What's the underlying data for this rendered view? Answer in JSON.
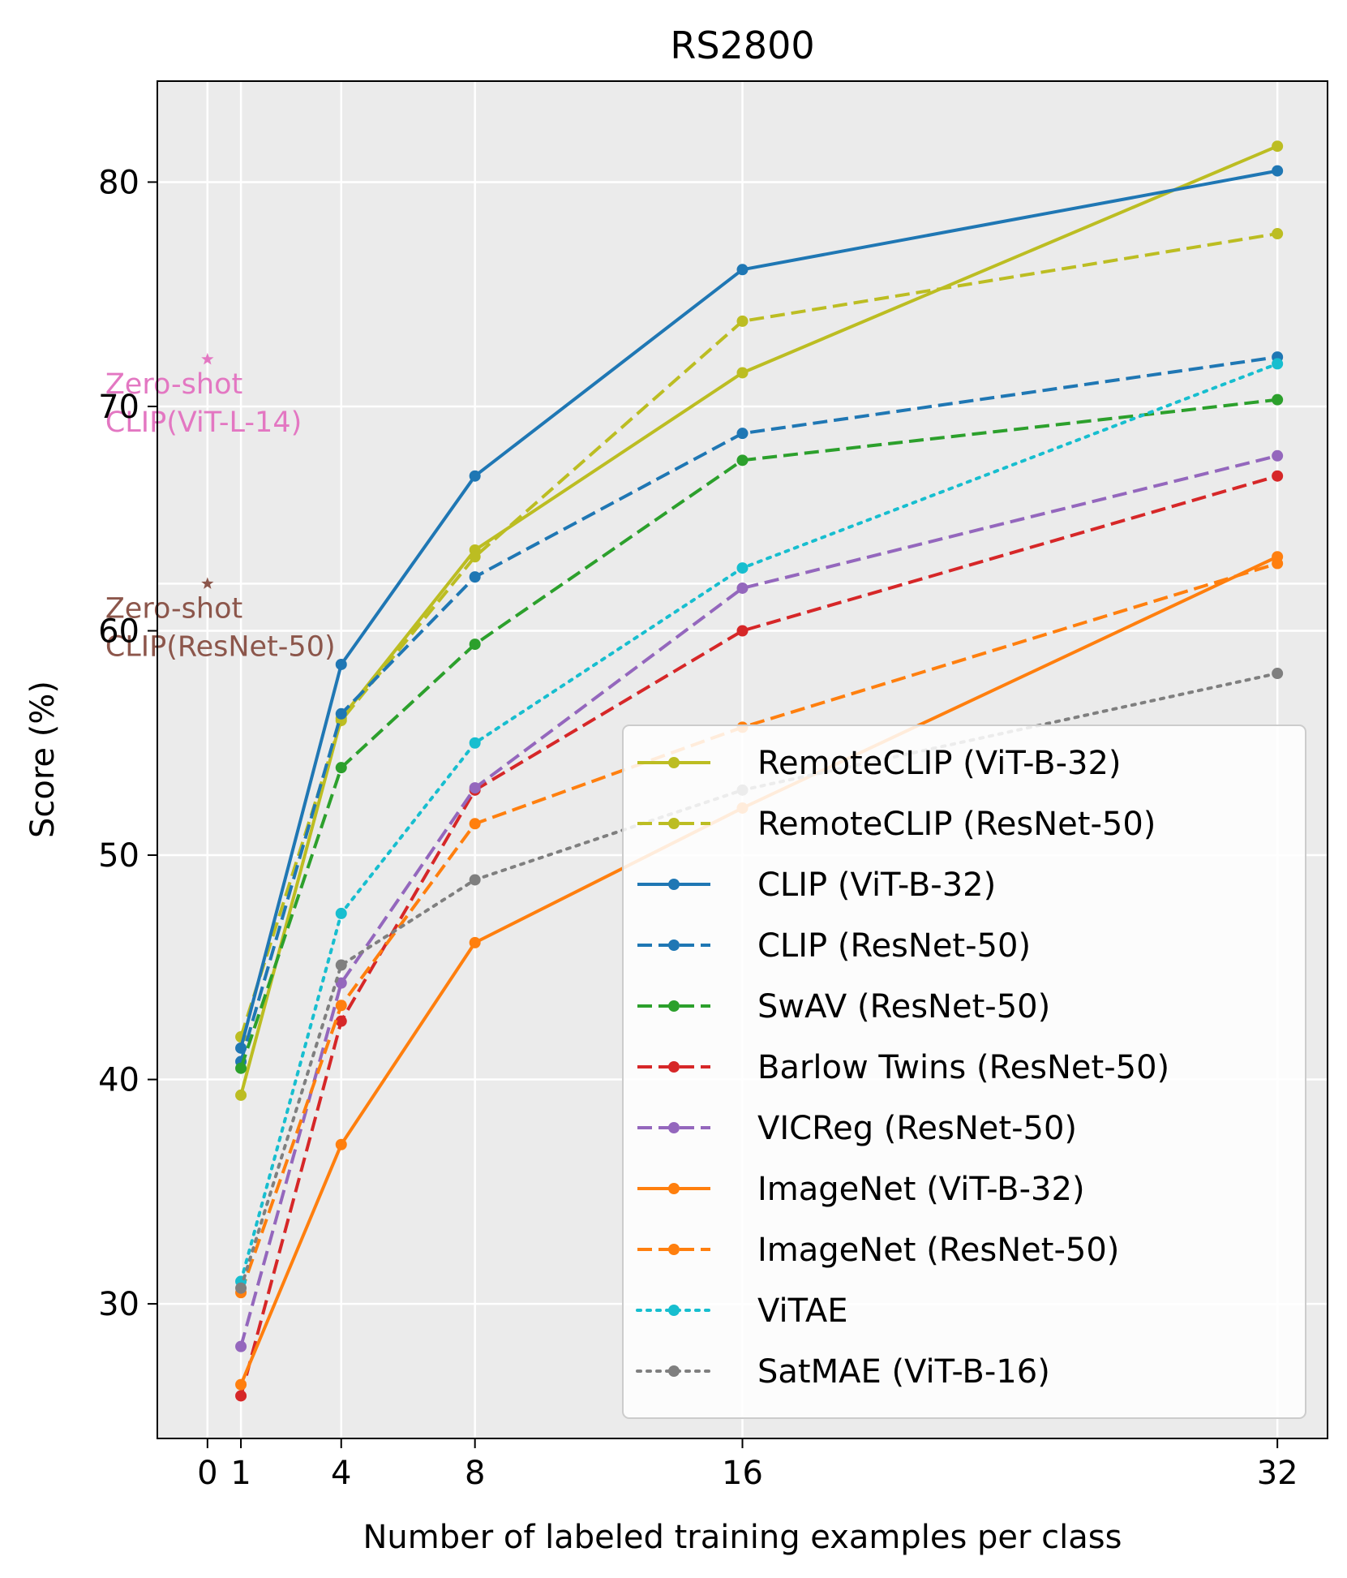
{
  "chart_data": {
    "type": "line",
    "title": "RS2800",
    "xlabel": "Number of labeled training examples per class",
    "ylabel": "Score (%)",
    "xlim": [
      -1.5,
      33.5
    ],
    "ylim": [
      24,
      84.5
    ],
    "x_ticks": [
      0,
      1,
      4,
      8,
      16,
      32
    ],
    "y_ticks": [
      30,
      40,
      50,
      60,
      70,
      80
    ],
    "grid": true,
    "legend_position": "lower-right",
    "series": [
      {
        "name": "RemoteCLIP (ViT-B-32)",
        "color": "#bcbd22",
        "dash": "solid",
        "x": [
          1,
          4,
          8,
          16,
          32
        ],
        "y": [
          39.3,
          56.1,
          63.6,
          71.5,
          81.6
        ]
      },
      {
        "name": "RemoteCLIP (ResNet-50)",
        "color": "#bcbd22",
        "dash": "dashed",
        "x": [
          1,
          4,
          8,
          16,
          32
        ],
        "y": [
          41.9,
          56.0,
          63.3,
          73.8,
          77.7
        ]
      },
      {
        "name": "CLIP (ViT-B-32)",
        "color": "#1f77b4",
        "dash": "solid",
        "x": [
          1,
          4,
          8,
          16,
          32
        ],
        "y": [
          41.4,
          58.5,
          66.9,
          76.1,
          80.5
        ]
      },
      {
        "name": "CLIP (ResNet-50)",
        "color": "#1f77b4",
        "dash": "dashed",
        "x": [
          1,
          4,
          8,
          16,
          32
        ],
        "y": [
          40.8,
          56.3,
          62.4,
          68.8,
          72.2
        ]
      },
      {
        "name": "SwAV (ResNet-50)",
        "color": "#2ca02c",
        "dash": "dashed",
        "x": [
          1,
          4,
          8,
          16,
          32
        ],
        "y": [
          40.5,
          53.9,
          59.4,
          67.6,
          70.3
        ]
      },
      {
        "name": "Barlow Twins (ResNet-50)",
        "color": "#d62728",
        "dash": "dashed",
        "x": [
          1,
          4,
          8,
          16,
          32
        ],
        "y": [
          25.9,
          42.6,
          52.9,
          60.0,
          66.9
        ]
      },
      {
        "name": "VICReg (ResNet-50)",
        "color": "#9467bd",
        "dash": "dashed",
        "x": [
          1,
          4,
          8,
          16,
          32
        ],
        "y": [
          28.1,
          44.3,
          53.0,
          61.9,
          67.8
        ]
      },
      {
        "name": "ImageNet (ViT-B-32)",
        "color": "#ff7f0e",
        "dash": "solid",
        "x": [
          1,
          4,
          8,
          16,
          32
        ],
        "y": [
          26.4,
          37.1,
          46.1,
          52.1,
          63.3
        ]
      },
      {
        "name": "ImageNet (ResNet-50)",
        "color": "#ff7f0e",
        "dash": "dashed",
        "x": [
          1,
          4,
          8,
          16,
          32
        ],
        "y": [
          30.5,
          43.3,
          51.4,
          55.7,
          63.0
        ]
      },
      {
        "name": "ViTAE",
        "color": "#17becf",
        "dash": "dotted",
        "x": [
          1,
          4,
          8,
          16,
          32
        ],
        "y": [
          31.0,
          47.4,
          55.0,
          62.8,
          71.9
        ]
      },
      {
        "name": "SatMAE (ViT-B-16)",
        "color": "#7f7f7f",
        "dash": "dotted",
        "x": [
          1,
          4,
          8,
          16,
          32
        ],
        "y": [
          30.7,
          45.1,
          48.9,
          52.9,
          58.1
        ]
      }
    ],
    "zero_shot": [
      {
        "x": 0,
        "y": 72.1,
        "color": "#e377c2",
        "label_line1": "Zero-shot",
        "label_line2": "CLIP(ViT-L-14)"
      },
      {
        "x": 0,
        "y": 62.1,
        "color": "#8c564b",
        "label_line1": "Zero-shot",
        "label_line2": "CLIP(ResNet-50)"
      }
    ]
  }
}
